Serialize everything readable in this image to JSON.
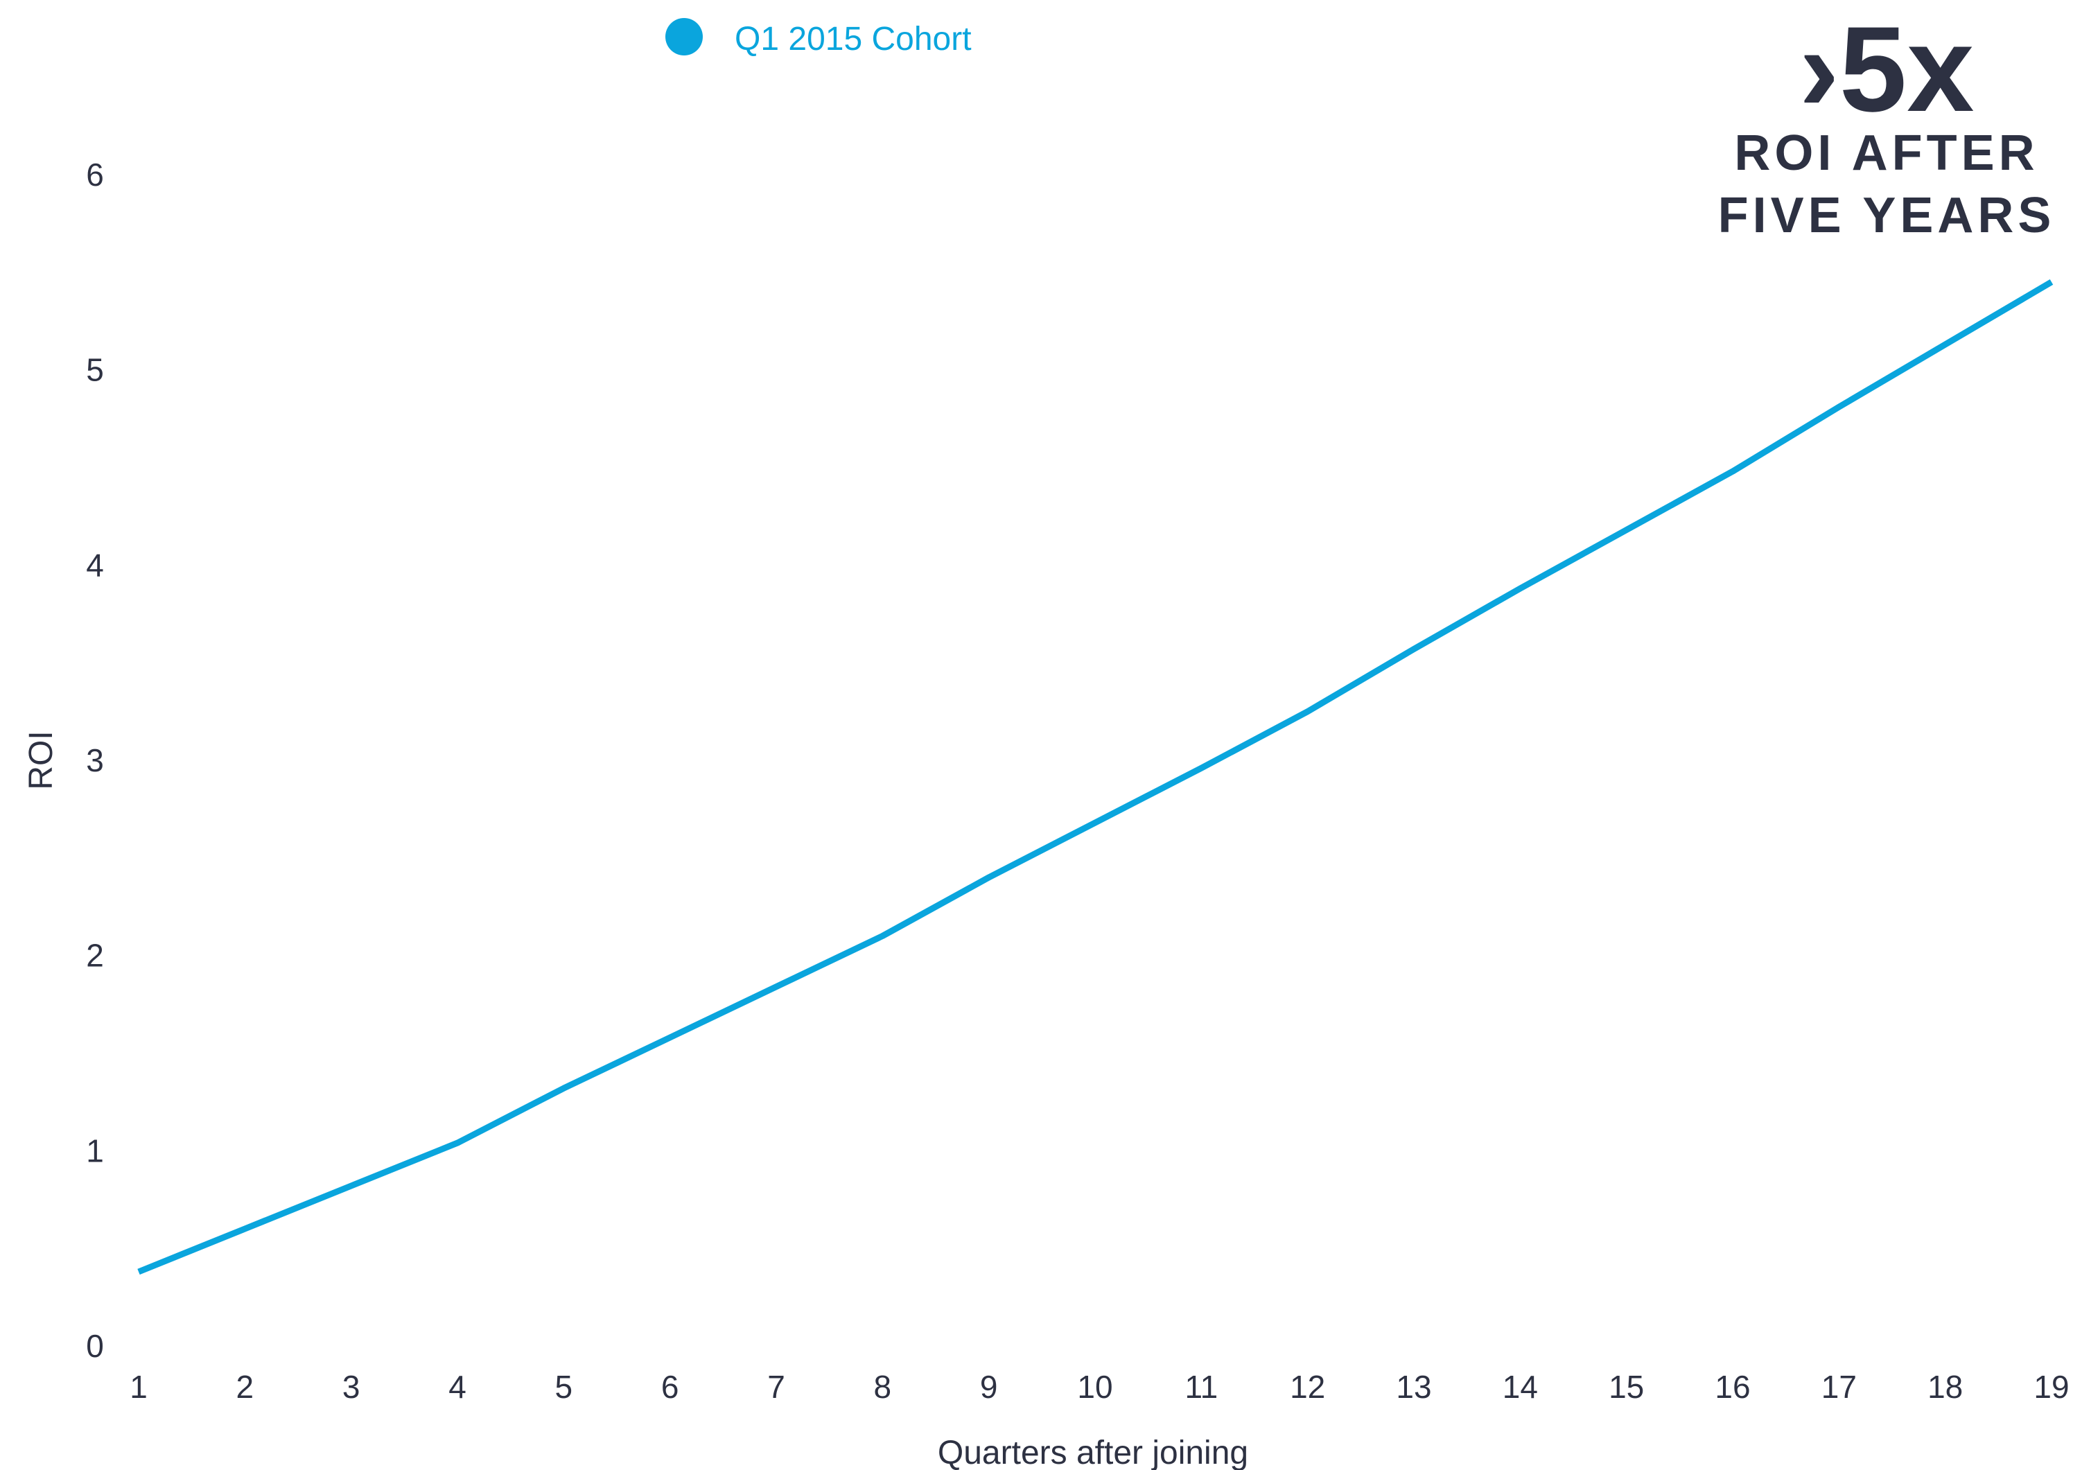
{
  "chart_data": {
    "type": "line",
    "title": "",
    "xlabel": "Quarters after joining",
    "ylabel": "ROI",
    "x": [
      1,
      2,
      3,
      4,
      5,
      6,
      7,
      8,
      9,
      10,
      11,
      12,
      13,
      14,
      15,
      16,
      17,
      18,
      19
    ],
    "x_tick_labels": [
      "1",
      "2",
      "3",
      "4",
      "5",
      "6",
      "7",
      "8",
      "9",
      "10",
      "11",
      "12",
      "13",
      "14",
      "15",
      "16",
      "17",
      "18",
      "19"
    ],
    "y_tick_labels": [
      "0",
      "1",
      "2",
      "3",
      "4",
      "5",
      "6"
    ],
    "ylim": [
      0,
      6
    ],
    "xlim": [
      1,
      19
    ],
    "grid": false,
    "legend_position": "top-center",
    "series": [
      {
        "name": "Q1 2015 Cohort",
        "color": "#0aa5dd",
        "values": [
          0.38,
          0.6,
          0.82,
          1.04,
          1.32,
          1.58,
          1.84,
          2.1,
          2.4,
          2.68,
          2.96,
          3.25,
          3.57,
          3.88,
          4.18,
          4.48,
          4.81,
          5.13,
          5.45
        ]
      }
    ],
    "annotation": {
      "headline": "›5x",
      "line1": "ROI AFTER",
      "line2": "FIVE YEARS"
    }
  },
  "colors": {
    "text": "#2d3142",
    "accent": "#0aa5dd"
  }
}
